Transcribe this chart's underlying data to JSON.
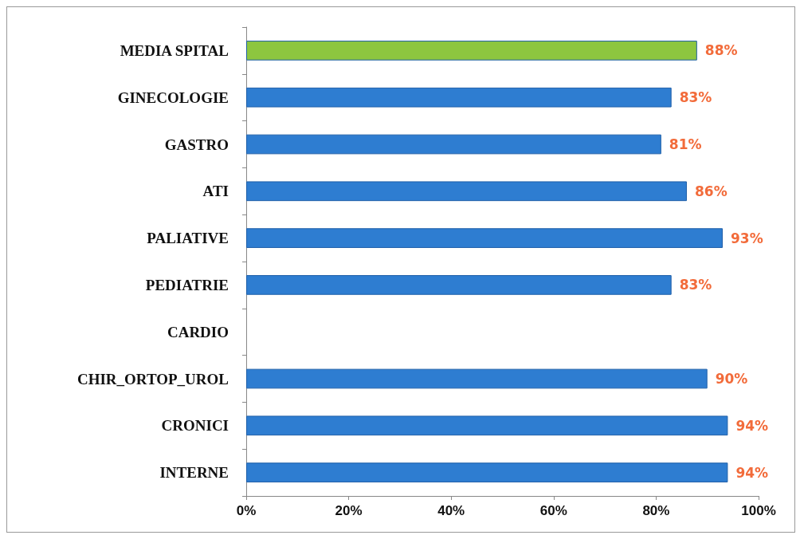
{
  "chart_data": {
    "type": "bar",
    "orientation": "horizontal",
    "categories": [
      "MEDIA SPITAL",
      "GINECOLOGIE",
      "GASTRO",
      "ATI",
      "PALIATIVE",
      "PEDIATRIE",
      "CARDIO",
      "CHIR_ORTOP_UROL",
      "CRONICI",
      "INTERNE"
    ],
    "values": [
      88,
      83,
      81,
      86,
      93,
      83,
      null,
      90,
      94,
      94
    ],
    "colors": [
      "#8dc63f",
      "#2e7dd1",
      "#2e7dd1",
      "#2e7dd1",
      "#2e7dd1",
      "#2e7dd1",
      "#2e7dd1",
      "#2e7dd1",
      "#2e7dd1",
      "#2e7dd1"
    ],
    "value_labels": [
      "88%",
      "83%",
      "81%",
      "86%",
      "93%",
      "83%",
      null,
      "90%",
      "94%",
      "94%"
    ],
    "xlim": [
      0,
      100
    ],
    "xticks": [
      {
        "value": 0,
        "label": "0%"
      },
      {
        "value": 20,
        "label": "20%"
      },
      {
        "value": 40,
        "label": "40%"
      },
      {
        "value": 60,
        "label": "60%"
      },
      {
        "value": 80,
        "label": "80%"
      },
      {
        "value": 100,
        "label": "100%"
      }
    ],
    "grid": false
  }
}
